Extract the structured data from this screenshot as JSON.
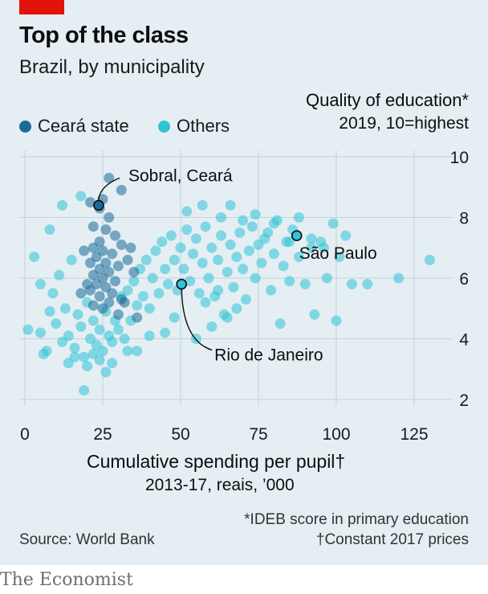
{
  "header": {
    "title": "Top of the class",
    "subtitle": "Brazil, by municipality"
  },
  "legend": [
    {
      "label": "Ceará state",
      "color": "#1a6c98"
    },
    {
      "label": "Others",
      "color": "#2ec4d6"
    }
  ],
  "footer": {
    "note1": "*IDEB score in primary education",
    "note2": "†Constant 2017 prices",
    "source": "Source: World Bank",
    "brand": "The Economist"
  },
  "chart_data": {
    "type": "scatter",
    "title": "Top of the class",
    "subtitle": "Brazil, by municipality",
    "ylabel": "Quality of education*",
    "yunit": "2019, 10=highest",
    "xlabel": "Cumulative spending per pupil†",
    "xunit": "2013-17, reais, ’000",
    "xlim": [
      0,
      135
    ],
    "ylim": [
      2,
      10
    ],
    "xticks": [
      0,
      25,
      50,
      75,
      100,
      125
    ],
    "yticks": [
      2,
      4,
      6,
      8,
      10
    ],
    "grid": true,
    "legend_position": "top-left",
    "series": [
      {
        "name": "Ceará state",
        "color": "#1a6c98",
        "points": [
          [
            27,
            9.3
          ],
          [
            31,
            8.9
          ],
          [
            21,
            8.5
          ],
          [
            25,
            8.6
          ],
          [
            24,
            8.3
          ],
          [
            27,
            8.0
          ],
          [
            22,
            7.7
          ],
          [
            26,
            7.6
          ],
          [
            29,
            7.4
          ],
          [
            24,
            7.2
          ],
          [
            31,
            7.1
          ],
          [
            22,
            7.0
          ],
          [
            25,
            6.9
          ],
          [
            28,
            6.8
          ],
          [
            23,
            6.7
          ],
          [
            21,
            6.5
          ],
          [
            26,
            6.5
          ],
          [
            30,
            6.4
          ],
          [
            24,
            6.3
          ],
          [
            27,
            6.2
          ],
          [
            22,
            6.1
          ],
          [
            25,
            6.0
          ],
          [
            29,
            5.9
          ],
          [
            23,
            5.8
          ],
          [
            26,
            5.7
          ],
          [
            21,
            5.6
          ],
          [
            28,
            5.5
          ],
          [
            24,
            5.4
          ],
          [
            31,
            5.3
          ],
          [
            27,
            5.2
          ],
          [
            22,
            5.1
          ],
          [
            25,
            5.0
          ],
          [
            32,
            5.2
          ],
          [
            20,
            5.8
          ],
          [
            33,
            6.6
          ],
          [
            19,
            6.9
          ],
          [
            34,
            7.0
          ],
          [
            35,
            6.2
          ],
          [
            18,
            5.5
          ],
          [
            30,
            4.8
          ],
          [
            36,
            4.7
          ]
        ]
      },
      {
        "name": "Others",
        "color": "#2ec4d6",
        "points": [
          [
            1,
            4.3
          ],
          [
            5,
            4.2
          ],
          [
            7,
            3.6
          ],
          [
            9,
            5.5
          ],
          [
            10,
            4.5
          ],
          [
            11,
            6.1
          ],
          [
            12,
            3.9
          ],
          [
            13,
            5.0
          ],
          [
            14,
            4.1
          ],
          [
            15,
            6.6
          ],
          [
            16,
            3.7
          ],
          [
            17,
            4.8
          ],
          [
            18,
            4.4
          ],
          [
            19,
            3.4
          ],
          [
            20,
            5.2
          ],
          [
            20,
            3.1
          ],
          [
            21,
            4.0
          ],
          [
            22,
            4.6
          ],
          [
            22,
            3.5
          ],
          [
            23,
            3.8
          ],
          [
            24,
            4.3
          ],
          [
            25,
            3.6
          ],
          [
            26,
            4.9
          ],
          [
            27,
            4.1
          ],
          [
            28,
            3.9
          ],
          [
            29,
            4.6
          ],
          [
            30,
            4.3
          ],
          [
            31,
            5.4
          ],
          [
            32,
            4.0
          ],
          [
            33,
            5.6
          ],
          [
            34,
            4.6
          ],
          [
            35,
            5.9
          ],
          [
            36,
            5.1
          ],
          [
            37,
            6.3
          ],
          [
            38,
            5.4
          ],
          [
            39,
            6.6
          ],
          [
            40,
            5.0
          ],
          [
            41,
            6.0
          ],
          [
            42,
            6.9
          ],
          [
            43,
            5.5
          ],
          [
            44,
            7.2
          ],
          [
            45,
            6.3
          ],
          [
            46,
            5.8
          ],
          [
            47,
            7.4
          ],
          [
            48,
            6.6
          ],
          [
            49,
            5.6
          ],
          [
            50,
            7.0
          ],
          [
            51,
            6.3
          ],
          [
            52,
            7.6
          ],
          [
            53,
            5.9
          ],
          [
            54,
            6.8
          ],
          [
            55,
            7.3
          ],
          [
            56,
            5.5
          ],
          [
            57,
            6.5
          ],
          [
            58,
            7.7
          ],
          [
            59,
            6.0
          ],
          [
            60,
            7.0
          ],
          [
            61,
            5.4
          ],
          [
            62,
            6.6
          ],
          [
            63,
            7.4
          ],
          [
            64,
            4.8
          ],
          [
            65,
            6.2
          ],
          [
            66,
            7.1
          ],
          [
            67,
            5.7
          ],
          [
            68,
            6.7
          ],
          [
            69,
            7.5
          ],
          [
            70,
            6.3
          ],
          [
            71,
            5.3
          ],
          [
            72,
            6.9
          ],
          [
            73,
            7.7
          ],
          [
            74,
            6.0
          ],
          [
            75,
            7.1
          ],
          [
            76,
            6.5
          ],
          [
            78,
            7.5
          ],
          [
            79,
            5.6
          ],
          [
            80,
            6.8
          ],
          [
            81,
            7.9
          ],
          [
            82,
            4.5
          ],
          [
            83,
            6.4
          ],
          [
            84,
            7.2
          ],
          [
            85,
            5.9
          ],
          [
            86,
            7.6
          ],
          [
            88,
            6.7
          ],
          [
            90,
            5.8
          ],
          [
            92,
            7.0
          ],
          [
            93,
            4.8
          ],
          [
            95,
            7.2
          ],
          [
            97,
            6.0
          ],
          [
            99,
            7.8
          ],
          [
            100,
            4.6
          ],
          [
            103,
            7.4
          ],
          [
            105,
            5.8
          ],
          [
            120,
            6.0
          ],
          [
            130,
            6.6
          ],
          [
            3,
            6.7
          ],
          [
            5,
            5.8
          ],
          [
            8,
            7.6
          ],
          [
            12,
            8.4
          ],
          [
            16,
            3.4
          ],
          [
            19,
            2.3
          ],
          [
            18,
            8.7
          ],
          [
            26,
            2.9
          ],
          [
            28,
            3.2
          ],
          [
            36,
            3.6
          ],
          [
            45,
            4.2
          ],
          [
            52,
            8.2
          ],
          [
            57,
            8.4
          ],
          [
            63,
            8.0
          ],
          [
            66,
            8.4
          ],
          [
            70,
            7.9
          ],
          [
            74,
            8.1
          ],
          [
            77,
            7.3
          ],
          [
            80,
            7.8
          ],
          [
            85,
            7.2
          ],
          [
            88,
            8.0
          ],
          [
            92,
            7.3
          ],
          [
            96,
            7.0
          ],
          [
            101,
            6.7
          ],
          [
            110,
            5.8
          ],
          [
            55,
            4.0
          ],
          [
            60,
            4.4
          ],
          [
            65,
            4.7
          ],
          [
            8,
            4.9
          ],
          [
            6,
            3.5
          ],
          [
            14,
            3.2
          ],
          [
            24,
            3.3
          ],
          [
            33,
            3.6
          ],
          [
            40,
            4.1
          ],
          [
            48,
            4.7
          ],
          [
            58,
            5.2
          ],
          [
            62,
            5.6
          ],
          [
            68,
            5.0
          ]
        ]
      }
    ],
    "annotations": [
      {
        "label": "Sobral, Ceará",
        "x": 23.7,
        "y": 8.4
      },
      {
        "label": "São Paulo",
        "x": 87.3,
        "y": 7.4
      },
      {
        "label": "Rio de Janeiro",
        "x": 50.3,
        "y": 5.8
      }
    ]
  }
}
